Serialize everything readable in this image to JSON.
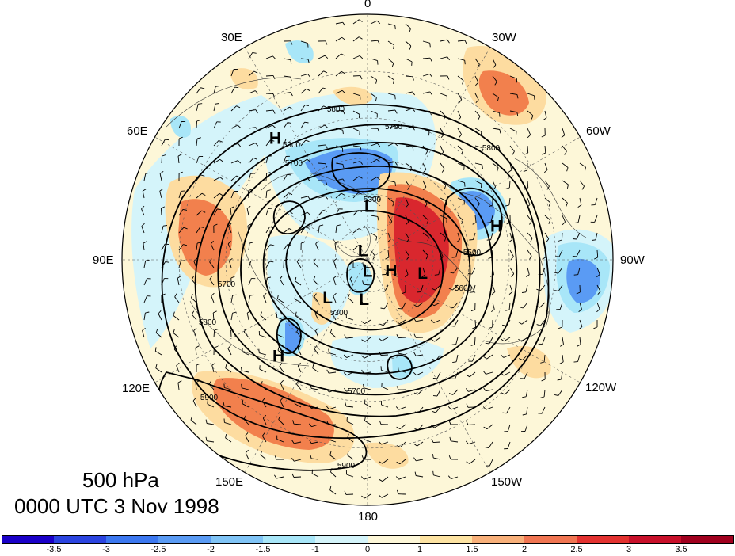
{
  "title": {
    "level": "500 hPa",
    "time": "0000 UTC 3 Nov 1998"
  },
  "longitude_labels": [
    "0",
    "30W",
    "60W",
    "90W",
    "120W",
    "150W",
    "180",
    "150E",
    "120E",
    "90E",
    "60E",
    "30E"
  ],
  "pressure_centers": [
    {
      "label": "H",
      "lon_deg": 37,
      "colat_deg": 64
    },
    {
      "label": "H",
      "lon_deg": -75,
      "colat_deg": 57
    },
    {
      "label": "H",
      "lon_deg": -113,
      "colat_deg": 12
    },
    {
      "label": "H",
      "lon_deg": 137,
      "colat_deg": 56
    },
    {
      "label": "L",
      "lon_deg": -2,
      "colat_deg": 25
    },
    {
      "label": "L",
      "lon_deg": -103,
      "colat_deg": 26
    },
    {
      "label": "L",
      "lon_deg": 25,
      "colat_deg": 5
    },
    {
      "label": "L",
      "lon_deg": 180,
      "colat_deg": 5
    },
    {
      "label": "L",
      "lon_deg": 133,
      "colat_deg": 25
    },
    {
      "label": "L",
      "lon_deg": 175,
      "colat_deg": 18
    }
  ],
  "contour_labels": [
    "5800",
    "5700",
    "5300",
    "5800",
    "5700",
    "5300",
    "5500",
    "5600",
    "5300",
    "5700",
    "5800",
    "5900",
    "5900",
    "5700"
  ],
  "colorbar": {
    "ticks": [
      "-3.5",
      "-3",
      "-2.5",
      "-2",
      "-1.5",
      "-1",
      "0",
      "1",
      "1.5",
      "2",
      "2.5",
      "3",
      "3.5"
    ],
    "colors": [
      "#1a00c8",
      "#2b44e0",
      "#3c78f0",
      "#5a9bf4",
      "#80c4f6",
      "#a8e6f8",
      "#d4f4fa",
      "#fdf7d8",
      "#fde3a2",
      "#f8b07a",
      "#f07552",
      "#e33230",
      "#c8102a",
      "#a0001e"
    ]
  },
  "anomaly_colors": {
    "warm_strong": "#d9272e",
    "warm_mid": "#f2804d",
    "warm_weak": "#fddca0",
    "neutral_warm": "#fdf7d8",
    "neutral_cool": "#d4f4fa",
    "cool_weak": "#a8e6f8",
    "cool_mid": "#5a9bf4"
  }
}
